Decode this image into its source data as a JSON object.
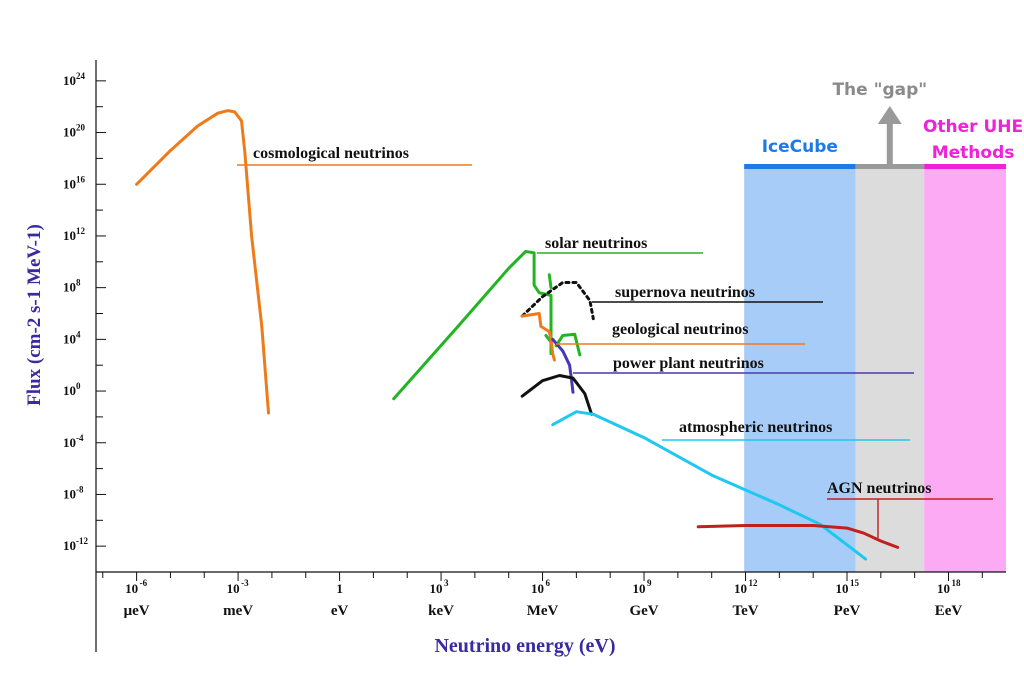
{
  "chart_data": {
    "type": "line",
    "xlabel": "Neutrino energy (eV)",
    "ylabel": "Flux (cm-2 s-1 MeV-1)",
    "xscale": "log",
    "yscale": "log",
    "xlim_log10": [
      -7.2,
      19.7
    ],
    "ylim_log10": [
      -14,
      26
    ],
    "x_ticks": [
      {
        "exp": -6,
        "power": "10",
        "sup": "-6",
        "unit": "μeV"
      },
      {
        "exp": -3,
        "power": "10",
        "sup": "-3",
        "unit": "meV"
      },
      {
        "exp": 0,
        "power": "1",
        "sup": "",
        "unit": "eV"
      },
      {
        "exp": 3,
        "power": "10",
        "sup": "3",
        "unit": "keV"
      },
      {
        "exp": 6,
        "power": "10",
        "sup": "6",
        "unit": "MeV"
      },
      {
        "exp": 9,
        "power": "10",
        "sup": "9",
        "unit": "GeV"
      },
      {
        "exp": 12,
        "power": "10",
        "sup": "12",
        "unit": "TeV"
      },
      {
        "exp": 15,
        "power": "10",
        "sup": "15",
        "unit": "PeV"
      },
      {
        "exp": 18,
        "power": "10",
        "sup": "18",
        "unit": "EeV"
      }
    ],
    "y_ticks": [
      {
        "exp": 24,
        "power": "10",
        "sup": "24"
      },
      {
        "exp": 20,
        "power": "10",
        "sup": "20"
      },
      {
        "exp": 16,
        "power": "10",
        "sup": "16"
      },
      {
        "exp": 12,
        "power": "10",
        "sup": "12"
      },
      {
        "exp": 8,
        "power": "10",
        "sup": "8"
      },
      {
        "exp": 4,
        "power": "10",
        "sup": "4"
      },
      {
        "exp": 0,
        "power": "10",
        "sup": "0"
      },
      {
        "exp": -4,
        "power": "10",
        "sup": "-4"
      },
      {
        "exp": -8,
        "power": "10",
        "sup": "-8"
      },
      {
        "exp": -12,
        "power": "10",
        "sup": "-12"
      }
    ],
    "bands": [
      {
        "name": "IceCube",
        "x_from_log10": 11.96,
        "x_to_log10": 15.25,
        "color": "#a8ccf8",
        "bar_color": "#1e7ae6",
        "label_color": "#1e7ae6"
      },
      {
        "name": "",
        "x_from_log10": 15.25,
        "x_to_log10": 17.28,
        "color": "#dcdcdc",
        "bar_color": "#9a9a9a",
        "label_color": "#8a8a8a"
      },
      {
        "name": "Other UHE\nMethods",
        "x_from_log10": 17.28,
        "x_to_log10": 19.7,
        "color": "#fcaaf4",
        "bar_color": "#ee22d8",
        "label_color": "#ee22d8"
      }
    ],
    "gap_annotation": {
      "text": "The \"gap\"",
      "color": "#8a8a8a"
    },
    "series": [
      {
        "name": "cosmological neutrinos",
        "color": "#ef7a1a",
        "label_color": "#111111",
        "segments": [
          [
            [
              -6.0,
              16.0
            ],
            [
              -5.0,
              18.6
            ],
            [
              -4.2,
              20.5
            ],
            [
              -3.6,
              21.5
            ],
            [
              -3.3,
              21.7
            ],
            [
              -3.1,
              21.6
            ],
            [
              -2.9,
              20.9
            ],
            [
              -2.8,
              18.5
            ],
            [
              -2.6,
              12.0
            ],
            [
              -2.3,
              5.0
            ],
            [
              -2.1,
              -1.7
            ]
          ]
        ]
      },
      {
        "name": "solar neutrinos",
        "color": "#22b522",
        "label_color": "#111111",
        "segments": [
          [
            [
              1.6,
              -0.6
            ],
            [
              3.5,
              5.0
            ],
            [
              5.0,
              9.5
            ],
            [
              5.5,
              10.8
            ],
            [
              5.75,
              10.7
            ],
            [
              5.75,
              8.2
            ],
            [
              5.9,
              7.6
            ],
            [
              6.25,
              7.4
            ],
            [
              6.25,
              2.9
            ]
          ],
          [
            [
              6.2,
              9.0
            ],
            [
              6.25,
              8.0
            ]
          ],
          [
            [
              6.4,
              3.5
            ],
            [
              6.6,
              4.3
            ],
            [
              6.95,
              4.4
            ],
            [
              7.1,
              2.8
            ]
          ],
          [
            [
              6.1,
              4.3
            ],
            [
              6.25,
              3.8
            ]
          ]
        ]
      },
      {
        "name": "supernova neutrinos",
        "color": "#111111",
        "label_color": "#111111",
        "dashed": true,
        "segments": [
          [
            [
              5.4,
              5.8
            ],
            [
              6.0,
              7.3
            ],
            [
              6.6,
              8.4
            ],
            [
              7.0,
              8.4
            ],
            [
              7.4,
              7.0
            ],
            [
              7.5,
              5.6
            ]
          ]
        ]
      },
      {
        "name": "geological neutrinos",
        "color": "#ef7a1a",
        "label_color": "#111111",
        "segments": [
          [
            [
              5.4,
              5.8
            ],
            [
              5.9,
              6.0
            ],
            [
              5.95,
              5.0
            ],
            [
              6.2,
              4.6
            ],
            [
              6.25,
              4.0
            ],
            [
              6.3,
              2.9
            ],
            [
              6.35,
              2.4
            ]
          ]
        ]
      },
      {
        "name": "power plant neutrinos",
        "color": "#4a36b4",
        "label_color": "#111111",
        "segments": [
          [
            [
              6.3,
              4.0
            ],
            [
              6.6,
              3.1
            ],
            [
              6.8,
              2.0
            ],
            [
              6.85,
              1.0
            ],
            [
              6.9,
              -0.1
            ]
          ]
        ]
      },
      {
        "name": "",
        "color": "#111111",
        "segments": [
          [
            [
              5.4,
              -0.4
            ],
            [
              6.0,
              0.8
            ],
            [
              6.5,
              1.2
            ],
            [
              6.9,
              1.0
            ],
            [
              7.25,
              -0.2
            ],
            [
              7.45,
              -1.8
            ]
          ]
        ]
      },
      {
        "name": "atmospheric neutrinos",
        "color": "#1ec8f0",
        "label_color": "#111111",
        "segments": [
          [
            [
              6.3,
              -2.6
            ],
            [
              7.0,
              -1.6
            ],
            [
              7.5,
              -1.8
            ],
            [
              9.0,
              -3.6
            ],
            [
              11.0,
              -6.5
            ],
            [
              13.0,
              -8.8
            ],
            [
              14.2,
              -10.3
            ],
            [
              15.2,
              -12.3
            ],
            [
              15.55,
              -13.0
            ]
          ]
        ]
      },
      {
        "name": "AGN neutrinos",
        "color": "#c02020",
        "label_color": "#111111",
        "segments": [
          [
            [
              10.6,
              -10.5
            ],
            [
              12.0,
              -10.4
            ],
            [
              14.0,
              -10.4
            ],
            [
              15.0,
              -10.6
            ],
            [
              15.5,
              -11.0
            ],
            [
              16.0,
              -11.6
            ],
            [
              16.5,
              -12.1
            ]
          ]
        ]
      }
    ]
  }
}
